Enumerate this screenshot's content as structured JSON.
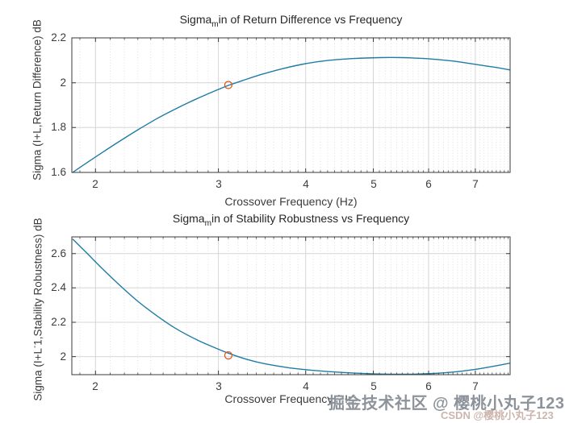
{
  "watermarks": {
    "primary": "掘金技术社区 @ 樱桃小丸子123",
    "secondary": "CSDN @樱桃小丸子123"
  },
  "colors": {
    "line": "#1f7ca4",
    "marker": "#d95319",
    "axis": "#3a3a3a",
    "grid_major": "#d6d6d6",
    "grid_minor": "#dfdfdf",
    "tick_text": "#3c3c3c"
  },
  "chart_data": [
    {
      "type": "line",
      "title_parts": [
        "Sigma",
        "m",
        "in of Return Difference vs Frequency"
      ],
      "xlabel": "Crossover Frequency (Hz)",
      "ylabel_parts": [
        "Sigma (I+L,Return Difference) dB",
        "",
        ""
      ],
      "xscale": "log",
      "xlim": [
        1.85,
        7.85
      ],
      "ylim": [
        1.6,
        2.2
      ],
      "xticks": [
        2,
        3,
        4,
        5,
        6,
        7
      ],
      "xtick_labels": [
        "2",
        "3",
        "4",
        "5",
        "6",
        "7"
      ],
      "yticks": [
        1.6,
        1.8,
        2,
        2.2
      ],
      "ytick_labels": [
        "1.6",
        "1.8",
        "2",
        "2.2"
      ],
      "minor_grid_x": {
        "from": 1.9,
        "to": 7.8,
        "step": 0.1
      },
      "grid": true,
      "series": [
        {
          "name": "sigma_min_return_difference",
          "x": [
            1.855,
            1.95,
            2.05,
            2.15,
            2.3,
            2.45,
            2.6,
            2.8,
            3.0,
            3.1,
            3.25,
            3.45,
            3.7,
            4.0,
            4.3,
            4.7,
            5.1,
            5.5,
            5.9,
            6.3,
            6.7,
            7.1,
            7.5,
            7.85
          ],
          "y": [
            1.6,
            1.646,
            1.691,
            1.733,
            1.79,
            1.84,
            1.882,
            1.93,
            1.97,
            1.988,
            2.01,
            2.036,
            2.062,
            2.085,
            2.099,
            2.108,
            2.112,
            2.112,
            2.108,
            2.101,
            2.091,
            2.079,
            2.068,
            2.057
          ]
        }
      ],
      "marker": {
        "x": 3.1,
        "y": 1.99
      }
    },
    {
      "type": "line",
      "title_parts": [
        "Sigma",
        "m",
        "in of Stability Robustness vs Frequency"
      ],
      "xlabel": "Crossover Frequency (Hz)",
      "ylabel_parts": [
        "Sigma (I+L",
        "-",
        "1,Stability Robustness) dB"
      ],
      "xscale": "log",
      "xlim": [
        1.85,
        7.85
      ],
      "ylim": [
        1.895,
        2.697
      ],
      "xticks": [
        2,
        3,
        4,
        5,
        6,
        7
      ],
      "xtick_labels": [
        "2",
        "3",
        "4",
        "5",
        "6",
        "7"
      ],
      "yticks": [
        2,
        2.2,
        2.4,
        2.6
      ],
      "ytick_labels": [
        "2",
        "2.2",
        "2.4",
        "2.6"
      ],
      "minor_grid_x": {
        "from": 1.9,
        "to": 7.8,
        "step": 0.1
      },
      "grid": true,
      "series": [
        {
          "name": "sigma_min_stability_robustness",
          "x": [
            1.855,
            1.95,
            2.05,
            2.15,
            2.3,
            2.45,
            2.6,
            2.8,
            3.0,
            3.1,
            3.3,
            3.5,
            3.8,
            4.1,
            4.5,
            4.9,
            5.3,
            5.7,
            6.1,
            6.5,
            6.9,
            7.3,
            7.85
          ],
          "y": [
            2.685,
            2.597,
            2.508,
            2.428,
            2.322,
            2.237,
            2.166,
            2.096,
            2.043,
            2.02,
            1.983,
            1.958,
            1.934,
            1.92,
            1.908,
            1.901,
            1.898,
            1.898,
            1.902,
            1.91,
            1.922,
            1.938,
            1.962
          ]
        }
      ],
      "marker": {
        "x": 3.1,
        "y": 2.007
      }
    }
  ]
}
